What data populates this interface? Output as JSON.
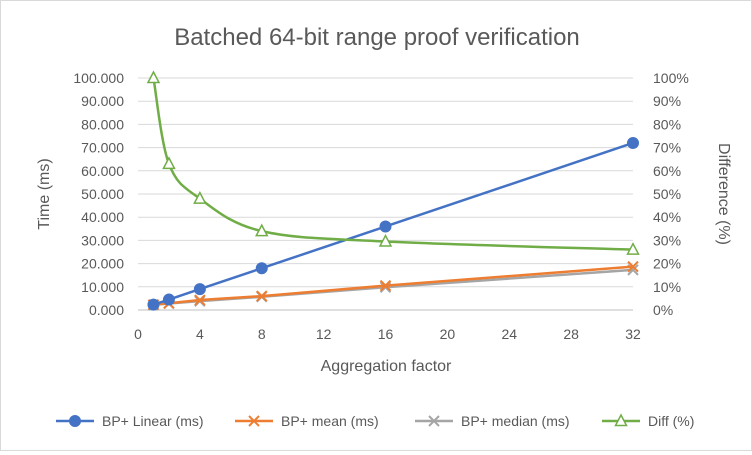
{
  "chart_data": {
    "type": "line",
    "title": "Batched 64-bit range proof verification",
    "xlabel": "Aggregation factor",
    "ylabel": "Time (ms)",
    "y2label": "Difference (%)",
    "xlim": [
      0,
      32
    ],
    "ylim": [
      0,
      100
    ],
    "y2lim": [
      0,
      100
    ],
    "x_ticks": [
      0,
      4,
      8,
      12,
      16,
      20,
      24,
      28,
      32
    ],
    "x_tick_labels": [
      "0",
      "4",
      "8",
      "12",
      "16",
      "20",
      "24",
      "28",
      "32"
    ],
    "y_ticks": [
      0,
      10,
      20,
      30,
      40,
      50,
      60,
      70,
      80,
      90,
      100
    ],
    "y_tick_labels": [
      "0.000",
      "10.000",
      "20.000",
      "30.000",
      "40.000",
      "50.000",
      "60.000",
      "70.000",
      "80.000",
      "90.000",
      "100.000"
    ],
    "y2_ticks": [
      0,
      10,
      20,
      30,
      40,
      50,
      60,
      70,
      80,
      90,
      100
    ],
    "y2_tick_labels": [
      "0%",
      "10%",
      "20%",
      "30%",
      "40%",
      "50%",
      "60%",
      "70%",
      "80%",
      "90%",
      "100%"
    ],
    "grid": "horizontal",
    "legend_position": "bottom",
    "x": [
      1,
      2,
      4,
      8,
      16,
      32
    ],
    "series": [
      {
        "name": "BP+ Linear (ms)",
        "axis": "left",
        "color": "#4472c4",
        "marker": "circle",
        "smooth": false,
        "values": [
          2.3,
          4.5,
          9.0,
          18.0,
          36.0,
          72.0
        ]
      },
      {
        "name": "BP+ mean (ms)",
        "axis": "left",
        "color": "#ed7d31",
        "marker": "x",
        "smooth": false,
        "values": [
          2.3,
          2.9,
          4.3,
          6.0,
          10.5,
          18.7
        ]
      },
      {
        "name": "BP+ median (ms)",
        "axis": "left",
        "color": "#a5a5a5",
        "marker": "x",
        "smooth": false,
        "values": [
          2.2,
          2.8,
          3.8,
          5.7,
          9.8,
          17.3
        ]
      },
      {
        "name": "Diff (%)",
        "axis": "right",
        "color": "#70ad47",
        "marker": "triangle",
        "smooth": true,
        "values": [
          100,
          63,
          48,
          34,
          29.5,
          26
        ]
      }
    ]
  }
}
